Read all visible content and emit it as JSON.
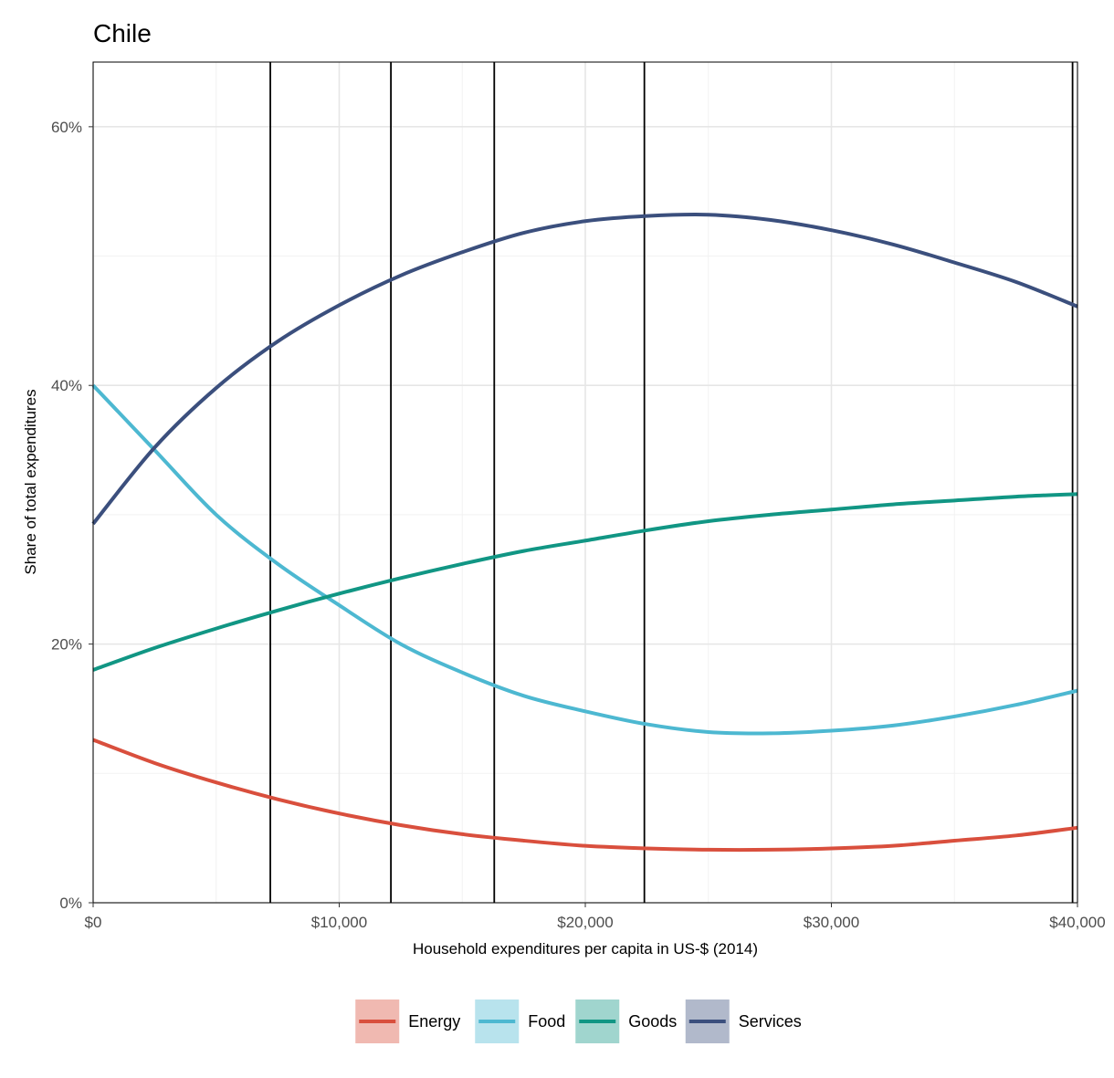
{
  "chart_data": {
    "type": "line",
    "title": "Chile",
    "xlabel": "Household expenditures per capita in US-$ (2014)",
    "ylabel": "Share of total expenditures",
    "xlim": [
      0,
      40000
    ],
    "ylim": [
      0,
      0.65
    ],
    "x_ticks": [
      0,
      10000,
      20000,
      30000,
      40000
    ],
    "x_tick_labels": [
      "$0",
      "$10,000",
      "$20,000",
      "$30,000",
      "$40,000"
    ],
    "y_ticks": [
      0,
      0.2,
      0.4,
      0.6
    ],
    "y_tick_labels": [
      "0%",
      "20%",
      "40%",
      "60%"
    ],
    "grid": true,
    "legend_position": "bottom",
    "vertical_lines": [
      7200,
      12100,
      16300,
      22400,
      39800
    ],
    "x": [
      0,
      2500,
      5000,
      7500,
      10000,
      12500,
      15000,
      17500,
      20000,
      22500,
      25000,
      27500,
      30000,
      32500,
      35000,
      37500,
      40000
    ],
    "series": [
      {
        "name": "Energy",
        "color": "#d94f3d",
        "values": [
          0.126,
          0.108,
          0.093,
          0.08,
          0.069,
          0.06,
          0.053,
          0.048,
          0.044,
          0.042,
          0.041,
          0.041,
          0.042,
          0.044,
          0.048,
          0.052,
          0.058
        ]
      },
      {
        "name": "Food",
        "color": "#4db8d1",
        "values": [
          0.4,
          0.35,
          0.3,
          0.262,
          0.23,
          0.2,
          0.178,
          0.16,
          0.148,
          0.138,
          0.132,
          0.131,
          0.133,
          0.137,
          0.144,
          0.153,
          0.164
        ]
      },
      {
        "name": "Goods",
        "color": "#119684",
        "values": [
          0.18,
          0.197,
          0.212,
          0.226,
          0.239,
          0.251,
          0.262,
          0.272,
          0.28,
          0.288,
          0.295,
          0.3,
          0.304,
          0.308,
          0.311,
          0.314,
          0.316
        ]
      },
      {
        "name": "Services",
        "color": "#3b4f7d",
        "values": [
          0.293,
          0.352,
          0.398,
          0.434,
          0.462,
          0.485,
          0.503,
          0.518,
          0.527,
          0.531,
          0.532,
          0.528,
          0.52,
          0.509,
          0.495,
          0.48,
          0.461
        ]
      }
    ]
  }
}
